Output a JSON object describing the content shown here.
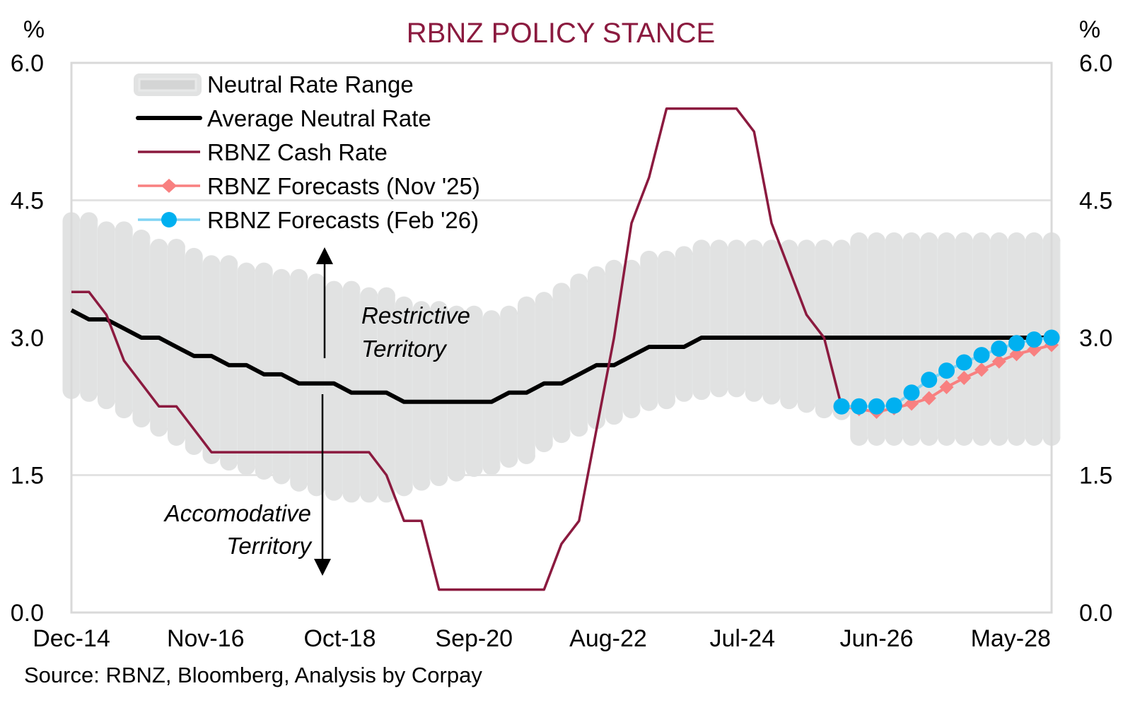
{
  "chart_data": {
    "type": "line",
    "title": "RBNZ POLICY STANCE",
    "ylabel_left": "%",
    "ylabel_right": "%",
    "ylim": [
      0,
      6
    ],
    "yticks": [
      "0.0",
      "1.5",
      "3.0",
      "4.5",
      "6.0"
    ],
    "ytick_values": [
      0,
      1.5,
      3.0,
      4.5,
      6.0
    ],
    "x_start": "Dec-14",
    "x_end": "Dec-28",
    "x_frequency": "quarterly",
    "xticks": [
      "Dec-14",
      "Nov-16",
      "Oct-18",
      "Sep-20",
      "Aug-22",
      "Jul-24",
      "Jun-26",
      "May-28"
    ],
    "xtick_months_from_start": [
      0,
      23,
      46,
      69,
      92,
      115,
      138,
      161
    ],
    "grid": true,
    "legend_placement": "top-left",
    "source": "Source: RBNZ, Bloomberg, Analysis by Corpay",
    "annotations": {
      "restrictive": [
        "Restrictive",
        "Territory"
      ],
      "accommodative": [
        "Accomodative",
        "Territory"
      ]
    },
    "series": [
      {
        "name": "Neutral Rate Range",
        "kind": "range",
        "color": "#E1E2E2",
        "low": [
          2.33,
          2.3,
          2.22,
          2.12,
          2.02,
          1.92,
          1.82,
          1.72,
          1.62,
          1.55,
          1.5,
          1.45,
          1.4,
          1.32,
          1.27,
          1.22,
          1.2,
          1.2,
          1.2,
          1.27,
          1.33,
          1.38,
          1.43,
          1.48,
          1.5,
          1.58,
          1.62,
          1.75,
          1.85,
          1.92,
          2.0,
          2.05,
          2.12,
          2.2,
          2.22,
          2.3,
          2.32,
          2.35,
          2.35,
          2.3,
          2.27,
          2.22,
          2.18,
          2.12,
          2.1,
          1.82,
          1.82,
          1.82,
          1.82,
          1.82,
          1.82,
          1.82,
          1.82,
          1.82,
          1.82,
          1.82,
          1.82
        ],
        "high": [
          4.37,
          4.37,
          4.27,
          4.27,
          4.18,
          4.08,
          4.08,
          3.98,
          3.9,
          3.9,
          3.82,
          3.82,
          3.75,
          3.75,
          3.7,
          3.62,
          3.62,
          3.55,
          3.55,
          3.45,
          3.4,
          3.4,
          3.35,
          3.35,
          3.3,
          3.35,
          3.45,
          3.5,
          3.6,
          3.7,
          3.78,
          3.85,
          3.85,
          3.95,
          3.95,
          4.0,
          4.07,
          4.07,
          4.07,
          4.07,
          4.07,
          4.07,
          4.07,
          4.07,
          4.07,
          4.15,
          4.15,
          4.15,
          4.15,
          4.15,
          4.15,
          4.15,
          4.15,
          4.15,
          4.15,
          4.15,
          4.15
        ]
      },
      {
        "name": "Average Neutral Rate",
        "color": "#000000",
        "start_index": 0,
        "values": [
          3.3,
          3.2,
          3.2,
          3.1,
          3.0,
          3.0,
          2.9,
          2.8,
          2.8,
          2.7,
          2.7,
          2.6,
          2.6,
          2.5,
          2.5,
          2.5,
          2.4,
          2.4,
          2.4,
          2.3,
          2.3,
          2.3,
          2.3,
          2.3,
          2.3,
          2.4,
          2.4,
          2.5,
          2.5,
          2.6,
          2.7,
          2.7,
          2.8,
          2.9,
          2.9,
          2.9,
          3.0,
          3.0,
          3.0,
          3.0,
          3.0,
          3.0,
          3.0,
          3.0,
          3.0,
          3.0,
          3.0,
          3.0,
          3.0,
          3.0,
          3.0,
          3.0,
          3.0,
          3.0,
          3.0,
          3.0,
          3.0
        ]
      },
      {
        "name": "RBNZ Cash Rate",
        "color": "#8B1A3F",
        "start_index": 0,
        "values": [
          3.5,
          3.5,
          3.25,
          2.75,
          2.5,
          2.25,
          2.25,
          2.0,
          1.75,
          1.75,
          1.75,
          1.75,
          1.75,
          1.75,
          1.75,
          1.75,
          1.75,
          1.75,
          1.5,
          1.0,
          1.0,
          0.25,
          0.25,
          0.25,
          0.25,
          0.25,
          0.25,
          0.25,
          0.75,
          1.0,
          2.0,
          3.0,
          4.25,
          4.75,
          5.5,
          5.5,
          5.5,
          5.5,
          5.5,
          5.25,
          4.25,
          3.75,
          3.25,
          3.0,
          2.25
        ]
      },
      {
        "name": "RBNZ Forecasts (Nov '25)",
        "color": "#F88080",
        "marker": "diamond",
        "start_index": 44,
        "values": [
          2.25,
          2.22,
          2.19,
          2.23,
          2.28,
          2.34,
          2.46,
          2.56,
          2.65,
          2.74,
          2.82,
          2.87,
          2.92
        ]
      },
      {
        "name": "RBNZ Forecasts (Feb '26)",
        "color": "#00B0F0",
        "line_color": "#7FD4F4",
        "marker": "circle",
        "start_index": 44,
        "values": [
          2.25,
          2.25,
          2.25,
          2.26,
          2.4,
          2.54,
          2.64,
          2.73,
          2.81,
          2.88,
          2.94,
          2.98,
          3.0
        ]
      }
    ]
  }
}
